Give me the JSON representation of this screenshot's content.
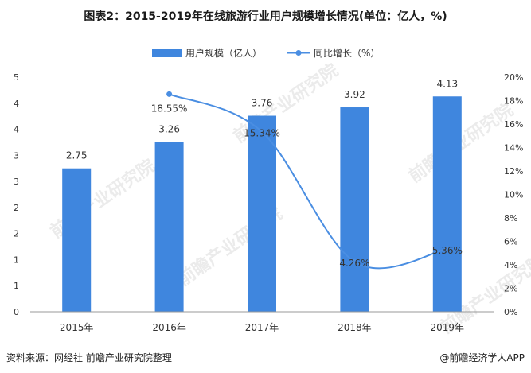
{
  "footer": {
    "source": "资料来源：网经社 前瞻产业研究院整理",
    "brand": "@前瞻经济学人APP"
  },
  "watermark": "前瞻产业研究院",
  "colors": {
    "bar": "#3F86DE",
    "line": "#4A8EE2",
    "axis": "#333333"
  },
  "chart_data": {
    "type": "bar",
    "title": "图表2：2015-2019年在线旅游行业用户规模增长情况(单位：亿人，%)",
    "categories": [
      "2015年",
      "2016年",
      "2017年",
      "2018年",
      "2019年"
    ],
    "series": [
      {
        "name": "用户规模（亿人）",
        "type": "bar",
        "axis": "left",
        "values": [
          2.75,
          3.26,
          3.76,
          3.92,
          4.13
        ],
        "labels": [
          "2.75",
          "3.26",
          "3.76",
          "3.92",
          "4.13"
        ]
      },
      {
        "name": "同比增长（%）",
        "type": "line",
        "axis": "right",
        "values": [
          null,
          18.55,
          15.34,
          4.26,
          5.36
        ],
        "labels": [
          "",
          "18.55%",
          "15.34%",
          "4.26%",
          "5.36%"
        ]
      }
    ],
    "left_axis": {
      "ticks": [
        "0",
        "1",
        "1",
        "2",
        "2",
        "3",
        "3",
        "4",
        "4",
        "5"
      ],
      "range": [
        0,
        4.5
      ]
    },
    "right_axis": {
      "ticks": [
        "0%",
        "2%",
        "4%",
        "6%",
        "8%",
        "10%",
        "12%",
        "14%",
        "16%",
        "18%",
        "20%"
      ],
      "range": [
        0,
        20
      ]
    },
    "legend_position": "top-center",
    "grid": false
  }
}
